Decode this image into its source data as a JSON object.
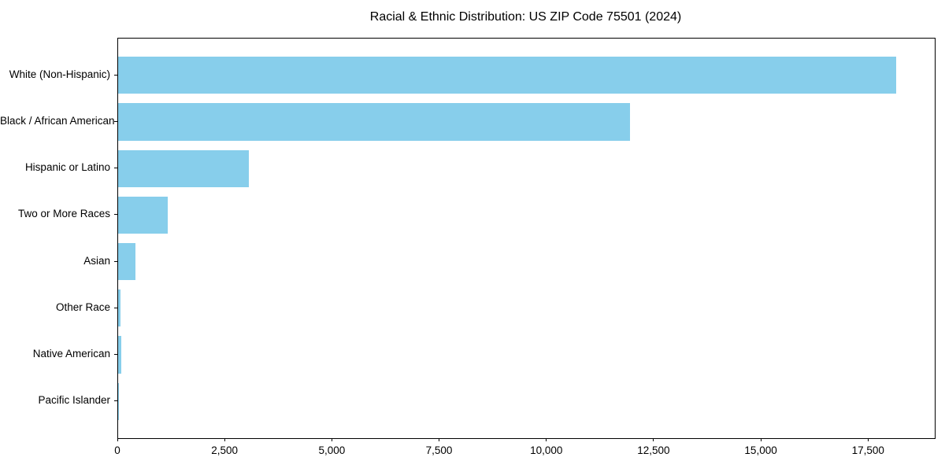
{
  "chart_data": {
    "type": "bar",
    "orientation": "horizontal",
    "title": "Racial & Ethnic Distribution: US ZIP Code 75501 (2024)",
    "categories": [
      "White (Non-Hispanic)",
      "Black / African American",
      "Hispanic or Latino",
      "Two or More Races",
      "Asian",
      "Other Race",
      "Native American",
      "Pacific Islander"
    ],
    "values": [
      18130,
      11930,
      3050,
      1160,
      405,
      60,
      75,
      10
    ],
    "xlabel": "",
    "ylabel": "",
    "xlim": [
      0,
      19037
    ],
    "xticks": [
      0,
      2500,
      5000,
      7500,
      10000,
      12500,
      15000,
      17500
    ],
    "xtick_labels": [
      "0",
      "2,500",
      "5,000",
      "7,500",
      "10,000",
      "12,500",
      "15,000",
      "17,500"
    ],
    "bar_color": "#87CEEB",
    "background_color": "#ffffff",
    "grid": false,
    "legend": null
  }
}
